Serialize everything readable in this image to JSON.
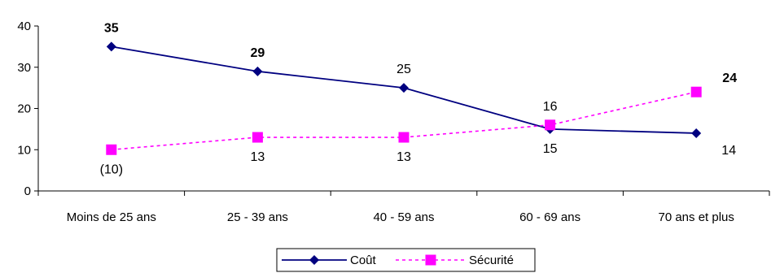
{
  "chart_data": {
    "type": "line",
    "categories": [
      "Moins de 25 ans",
      "25 - 39 ans",
      "40 - 59 ans",
      "60 - 69 ans",
      "70 ans et plus"
    ],
    "ylim": [
      0,
      40
    ],
    "yticks": [
      0,
      10,
      20,
      30,
      40
    ],
    "grid": false,
    "legend_position": "bottom",
    "series": [
      {
        "name": "Coût",
        "values": [
          35,
          29,
          25,
          15,
          14
        ],
        "labels": [
          "35",
          "29",
          "25",
          "15",
          "14"
        ],
        "label_bold": [
          true,
          true,
          false,
          false,
          false
        ],
        "label_position": [
          "above",
          "above",
          "above",
          "below",
          "right-below"
        ],
        "color": "#000080",
        "line_style": "solid",
        "marker": "diamond"
      },
      {
        "name": "Sécurité",
        "values": [
          10,
          13,
          13,
          16,
          24
        ],
        "labels": [
          "(10)",
          "13",
          "13",
          "16",
          "24"
        ],
        "label_bold": [
          false,
          false,
          false,
          false,
          true
        ],
        "label_position": [
          "below",
          "below",
          "below",
          "above",
          "above-right"
        ],
        "color": "#FF00FF",
        "line_style": "dashed",
        "marker": "square"
      }
    ]
  }
}
